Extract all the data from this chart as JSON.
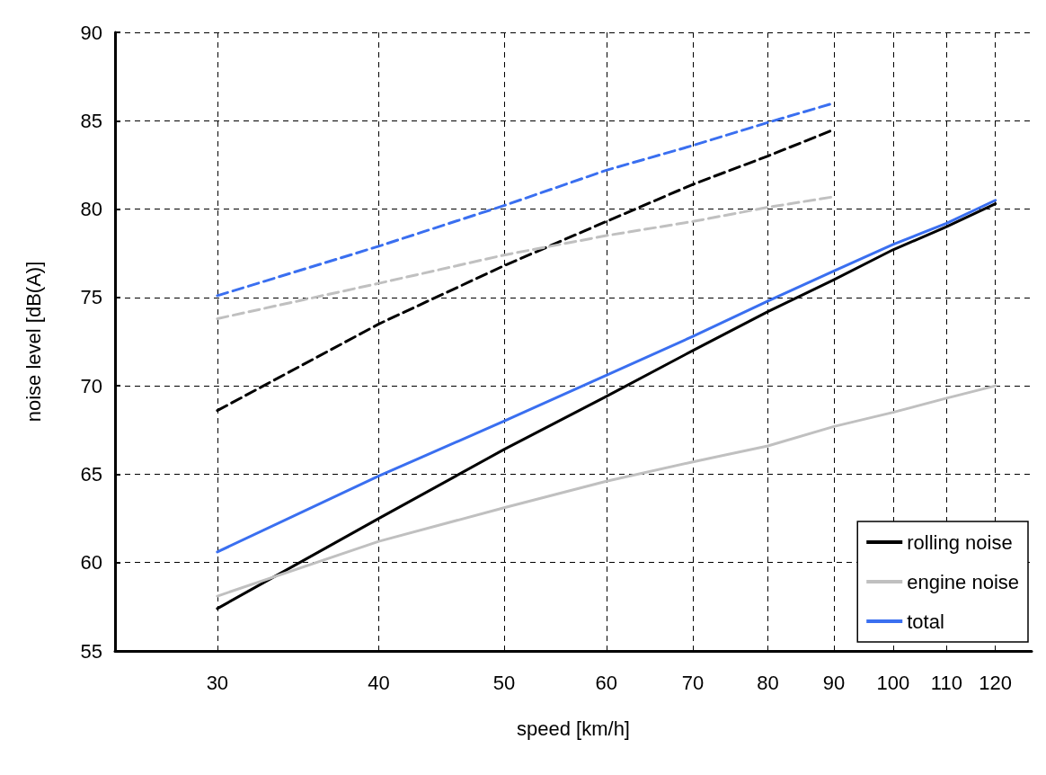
{
  "chart_data": {
    "type": "line",
    "xlabel": "speed [km/h]",
    "ylabel": "noise level [dB(A)]",
    "log": "x",
    "xlim": [
      25,
      128
    ],
    "xticks": [
      30,
      40,
      50,
      60,
      70,
      80,
      90,
      100,
      110,
      120
    ],
    "ylim": [
      55,
      90
    ],
    "yticks": [
      55,
      60,
      65,
      70,
      75,
      80,
      85,
      90
    ],
    "grid": true,
    "legend": "bottom right",
    "marker": "none",
    "series": [
      {
        "name": "rolling noise",
        "color": "#000000",
        "line_style": "solid",
        "x": [
          30,
          40,
          50,
          60,
          70,
          80,
          90,
          100,
          110,
          120
        ],
        "values": [
          57.4,
          62.5,
          66.4,
          69.4,
          72,
          74.2,
          76,
          77.7,
          79,
          80.3
        ]
      },
      {
        "name": "engine noise",
        "color": "#c0c0c0",
        "line_style": "solid",
        "x": [
          30,
          40,
          50,
          60,
          70,
          80,
          90,
          100,
          110,
          120
        ],
        "values": [
          58.1,
          61.2,
          63.1,
          64.6,
          65.7,
          66.6,
          67.7,
          68.5,
          69.3,
          70
        ]
      },
      {
        "name": "total",
        "color": "#3a6ff0",
        "line_style": "solid",
        "x": [
          30,
          40,
          50,
          60,
          70,
          80,
          90,
          100,
          110,
          120
        ],
        "values": [
          60.6,
          64.9,
          68,
          70.6,
          72.8,
          74.8,
          76.5,
          78,
          79.2,
          80.5
        ]
      },
      {
        "color": "#3a6ff0",
        "line_style": "dashed",
        "x": [
          30,
          40,
          50,
          60,
          70,
          80,
          90
        ],
        "values": [
          75.1,
          77.9,
          80.2,
          82.2,
          83.6,
          84.9,
          86
        ]
      },
      {
        "color": "#000000",
        "line_style": "dashed",
        "x": [
          30,
          40,
          50,
          60,
          70,
          80,
          90
        ],
        "values": [
          68.6,
          73.5,
          76.8,
          79.3,
          81.4,
          83,
          84.5
        ]
      },
      {
        "color": "#c0c0c0",
        "line_style": "dashed",
        "x": [
          30,
          40,
          50,
          60,
          70,
          80,
          90
        ],
        "values": [
          73.8,
          75.8,
          77.4,
          78.5,
          79.3,
          80.1,
          80.7
        ]
      }
    ]
  }
}
